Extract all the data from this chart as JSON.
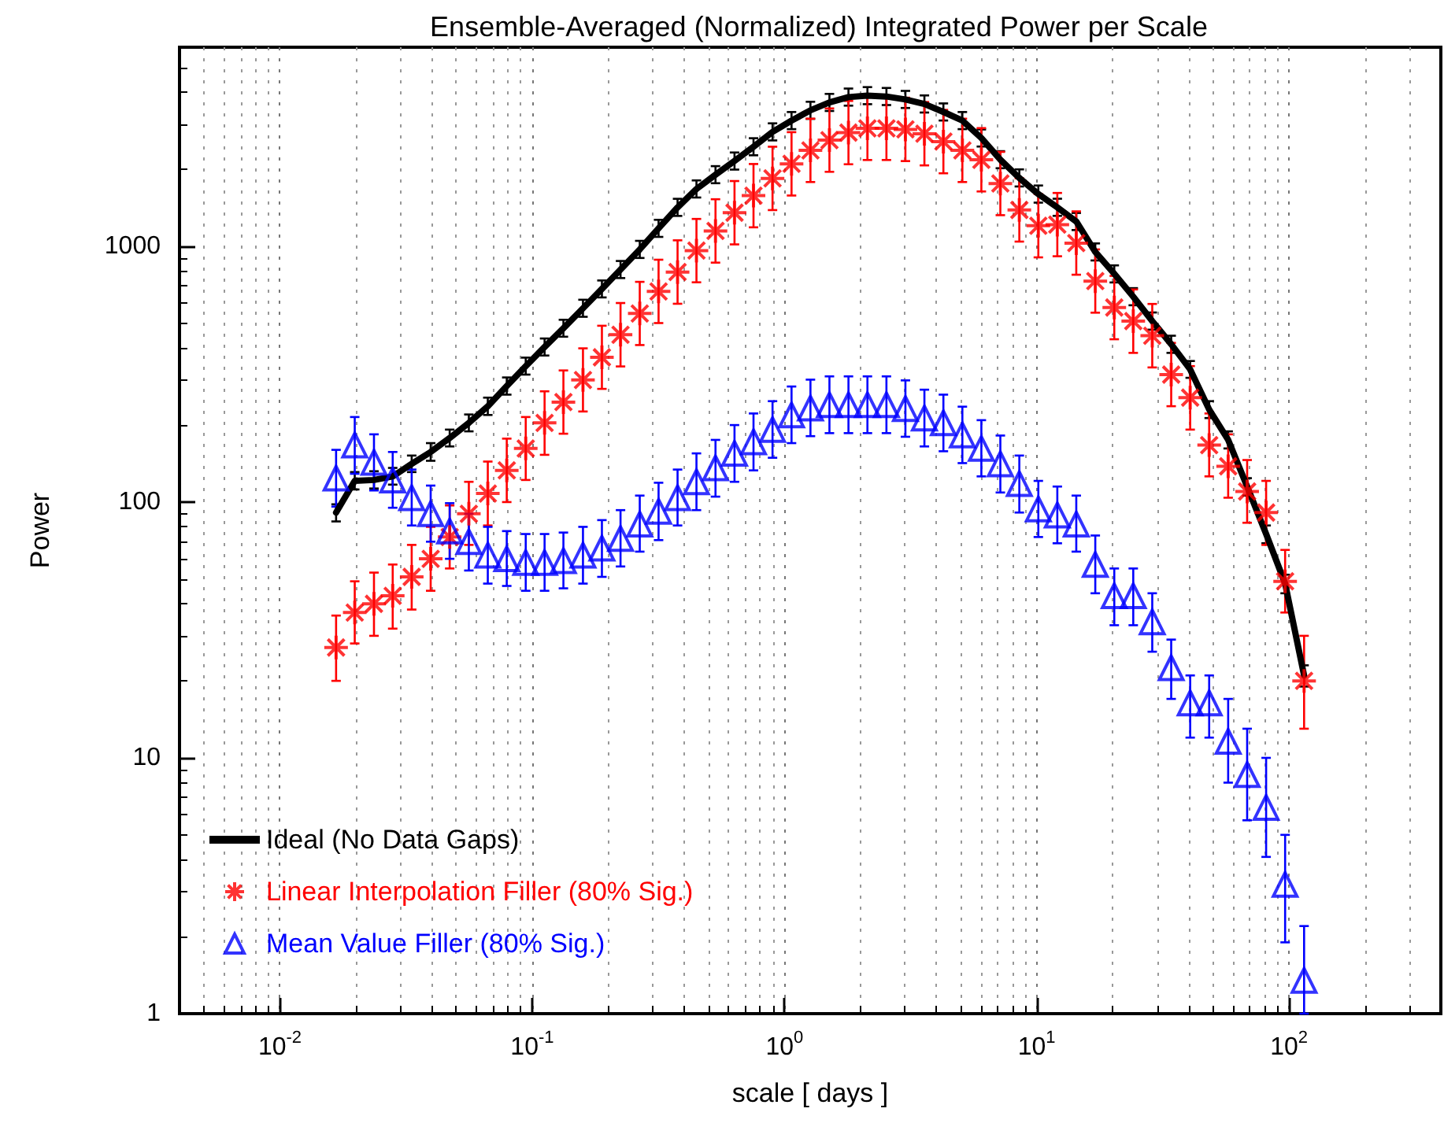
{
  "chart_data": {
    "type": "line",
    "title": "Ensemble-Averaged (Normalized) Integrated Power per Scale",
    "xlabel": "scale [ days ]",
    "ylabel": "Power",
    "log": "xy",
    "grid": "x",
    "legend": "bottom left",
    "xlim": [
      0.004,
      400
    ],
    "ylim": [
      1,
      6000
    ],
    "xticks": [
      {
        "value": 0.01,
        "label": "10$^{-2}$"
      },
      {
        "value": 0.1,
        "label": "10$^{-1}$"
      },
      {
        "value": 1,
        "label": "10$^{0}$"
      },
      {
        "value": 10,
        "label": "10$^{1}$"
      },
      {
        "value": 100,
        "label": "10$^{2}$"
      }
    ],
    "yticks": [
      1,
      10,
      100,
      1000
    ],
    "x": [
      0.0167,
      0.0198,
      0.0236,
      0.028,
      0.0333,
      0.0396,
      0.0471,
      0.0561,
      0.0667,
      0.0793,
      0.0943,
      0.112,
      0.133,
      0.159,
      0.189,
      0.224,
      0.267,
      0.317,
      0.377,
      0.448,
      0.533,
      0.634,
      0.754,
      0.897,
      1.067,
      1.268,
      1.508,
      1.794,
      2.133,
      2.537,
      3.017,
      3.588,
      4.267,
      5.074,
      6.034,
      7.176,
      8.533,
      10.15,
      12.07,
      14.35,
      17.07,
      20.3,
      24.14,
      28.71,
      34.13,
      40.59,
      48.27,
      57.41,
      68.27,
      81.18,
      96.55,
      114.8
    ],
    "series": [
      {
        "name": "Ideal (No Data Gaps)",
        "marker": "none",
        "line_style": "solid",
        "color": "#000000",
        "values": [
          91,
          121,
          122,
          126,
          141,
          157,
          178,
          204,
          237,
          284,
          340,
          404,
          478,
          572,
          681,
          811,
          972,
          1175,
          1419,
          1675,
          1905,
          2154,
          2449,
          2800,
          3100,
          3400,
          3650,
          3830,
          3880,
          3850,
          3750,
          3600,
          3350,
          3100,
          2650,
          2180,
          1850,
          1600,
          1420,
          1250,
          950,
          780,
          635,
          510,
          414,
          330,
          230,
          175,
          115,
          75,
          48,
          21
        ],
        "errors": [
          [
            84,
            98
          ],
          [
            112,
            131
          ],
          [
            113,
            132
          ],
          [
            117,
            136
          ],
          [
            131,
            152
          ],
          [
            145,
            170
          ],
          [
            165,
            192
          ],
          [
            189,
            220
          ],
          [
            219,
            256
          ],
          [
            263,
            307
          ],
          [
            315,
            367
          ],
          [
            374,
            436
          ],
          [
            443,
            516
          ],
          [
            530,
            618
          ],
          [
            631,
            735
          ],
          [
            751,
            876
          ],
          [
            900,
            1050
          ],
          [
            1088,
            1269
          ],
          [
            1314,
            1533
          ],
          [
            1551,
            1809
          ],
          [
            1764,
            2057
          ],
          [
            1994,
            2326
          ],
          [
            2268,
            2645
          ],
          [
            2593,
            3024
          ],
          [
            2870,
            3348
          ],
          [
            3148,
            3672
          ],
          [
            3380,
            3942
          ],
          [
            3546,
            4136
          ],
          [
            3593,
            4190
          ],
          [
            3565,
            4158
          ],
          [
            3472,
            4050
          ],
          [
            3333,
            3888
          ],
          [
            3102,
            3618
          ],
          [
            2870,
            3348
          ],
          [
            2454,
            2862
          ],
          [
            2019,
            2354
          ],
          [
            1713,
            1998
          ],
          [
            1481,
            1728
          ],
          [
            1315,
            1534
          ],
          [
            1157,
            1350
          ],
          [
            880,
            1026
          ],
          [
            722,
            842
          ],
          [
            588,
            686
          ],
          [
            472,
            551
          ],
          [
            383,
            447
          ],
          [
            306,
            356
          ],
          [
            213,
            248
          ],
          [
            162,
            189
          ],
          [
            106,
            124
          ],
          [
            69,
            81
          ],
          [
            44,
            52
          ],
          [
            19,
            23
          ]
        ]
      },
      {
        "name": "Linear Interpolation Filler (80% Sig.)",
        "type": "scatter",
        "marker": "cross",
        "color": "#ff0000",
        "values": [
          27,
          37,
          40,
          43,
          51,
          60,
          73,
          90,
          108,
          133,
          162,
          204,
          246,
          300,
          368,
          451,
          546,
          666,
          793,
          962,
          1148,
          1353,
          1577,
          1842,
          2100,
          2371,
          2600,
          2782,
          2891,
          2891,
          2864,
          2754,
          2566,
          2371,
          2178,
          1759,
          1387,
          1203,
          1215,
          1029,
          731,
          576,
          510,
          447,
          315,
          256,
          167,
          138,
          110,
          91,
          49,
          20
        ],
        "errors": [
          [
            20,
            36
          ],
          [
            28,
            49
          ],
          [
            30,
            53
          ],
          [
            32,
            57
          ],
          [
            38,
            68
          ],
          [
            45,
            80
          ],
          [
            55,
            97
          ],
          [
            68,
            120
          ],
          [
            81,
            144
          ],
          [
            100,
            177
          ],
          [
            122,
            215
          ],
          [
            153,
            271
          ],
          [
            185,
            327
          ],
          [
            226,
            399
          ],
          [
            277,
            489
          ],
          [
            339,
            600
          ],
          [
            411,
            726
          ],
          [
            501,
            886
          ],
          [
            596,
            1055
          ],
          [
            723,
            1279
          ],
          [
            863,
            1527
          ],
          [
            1017,
            1799
          ],
          [
            1186,
            2097
          ],
          [
            1385,
            2450
          ],
          [
            1579,
            2793
          ],
          [
            1783,
            3153
          ],
          [
            1955,
            3458
          ],
          [
            2092,
            3700
          ],
          [
            2174,
            3845
          ],
          [
            2174,
            3845
          ],
          [
            2153,
            3809
          ],
          [
            2071,
            3663
          ],
          [
            1929,
            3413
          ],
          [
            1783,
            3153
          ],
          [
            1638,
            2897
          ],
          [
            1323,
            2339
          ],
          [
            1043,
            1845
          ],
          [
            905,
            1600
          ],
          [
            914,
            1616
          ],
          [
            774,
            1369
          ],
          [
            550,
            972
          ],
          [
            433,
            766
          ],
          [
            383,
            678
          ],
          [
            336,
            595
          ],
          [
            237,
            419
          ],
          [
            192,
            340
          ],
          [
            126,
            222
          ],
          [
            104,
            184
          ],
          [
            83,
            146
          ],
          [
            68,
            121
          ],
          [
            37,
            65
          ],
          [
            13,
            30
          ]
        ]
      },
      {
        "name": "Mean Value Filler (80% Sig.)",
        "type": "scatter",
        "marker": "triangle",
        "color": "#0000ff",
        "values": [
          124,
          167,
          143,
          122,
          104,
          90,
          77,
          70,
          62,
          60,
          58,
          58,
          59,
          62,
          66,
          72,
          82,
          92,
          104,
          120,
          136,
          155,
          172,
          192,
          219,
          233,
          240,
          240,
          240,
          240,
          232,
          213,
          204,
          183,
          162,
          141,
          118,
          94,
          89,
          82,
          57,
          43,
          43,
          34,
          22.5,
          16.4,
          16.4,
          11.6,
          8.6,
          6.4,
          3.2,
          1.35
        ],
        "errors": [
          [
            96,
            160
          ],
          [
            129,
            215
          ],
          [
            111,
            184
          ],
          [
            95,
            157
          ],
          [
            81,
            134
          ],
          [
            70,
            116
          ],
          [
            60,
            99
          ],
          [
            54,
            90
          ],
          [
            48,
            80
          ],
          [
            47,
            77
          ],
          [
            45,
            75
          ],
          [
            45,
            75
          ],
          [
            46,
            76
          ],
          [
            48,
            80
          ],
          [
            51,
            85
          ],
          [
            56,
            93
          ],
          [
            64,
            106
          ],
          [
            71,
            119
          ],
          [
            81,
            134
          ],
          [
            93,
            155
          ],
          [
            105,
            175
          ],
          [
            120,
            200
          ],
          [
            133,
            222
          ],
          [
            149,
            248
          ],
          [
            170,
            283
          ],
          [
            181,
            301
          ],
          [
            186,
            310
          ],
          [
            186,
            310
          ],
          [
            186,
            310
          ],
          [
            186,
            310
          ],
          [
            180,
            299
          ],
          [
            165,
            275
          ],
          [
            158,
            263
          ],
          [
            142,
            236
          ],
          [
            126,
            209
          ],
          [
            109,
            182
          ],
          [
            91,
            152
          ],
          [
            73,
            121
          ],
          [
            69,
            115
          ],
          [
            64,
            106
          ],
          [
            44,
            74
          ],
          [
            33,
            55
          ],
          [
            33,
            55
          ],
          [
            26,
            44
          ],
          [
            17,
            29
          ],
          [
            12,
            21
          ],
          [
            12,
            21
          ],
          [
            8,
            17
          ],
          [
            5.7,
            13
          ],
          [
            4.1,
            10
          ],
          [
            1.9,
            5
          ],
          [
            1,
            2.2
          ]
        ]
      }
    ]
  }
}
